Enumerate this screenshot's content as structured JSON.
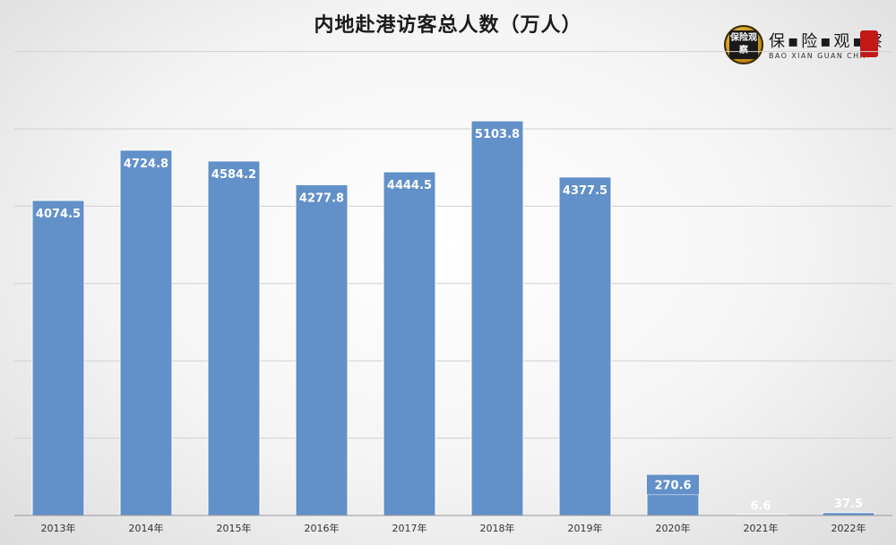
{
  "chart_data": {
    "type": "bar",
    "title": "内地赴港访客总人数（万人）",
    "categories": [
      "2013年",
      "2014年",
      "2015年",
      "2016年",
      "2017年",
      "2018年",
      "2019年",
      "2020年",
      "2021年",
      "2022年"
    ],
    "values": [
      4074.5,
      4724.8,
      4584.2,
      4277.8,
      4444.5,
      5103.8,
      4377.5,
      270.6,
      6.6,
      37.5
    ],
    "data_labels": [
      "4074.5",
      "4724.8",
      "4584.2",
      "4277.8",
      "4444.5",
      "5103.8",
      "4377.5",
      "270.6",
      "6.6",
      "37.5"
    ],
    "ylim": [
      0,
      6000
    ],
    "gridlines": [
      1000,
      2000,
      3000,
      4000,
      5000,
      6000
    ],
    "grid": true,
    "legend": "none",
    "bar_color": "#6290c8"
  },
  "logo": {
    "seal_text": "保险观察",
    "name": "保▪险▪观▪察",
    "subtitle": "BAO XIAN GUAN CHA"
  }
}
